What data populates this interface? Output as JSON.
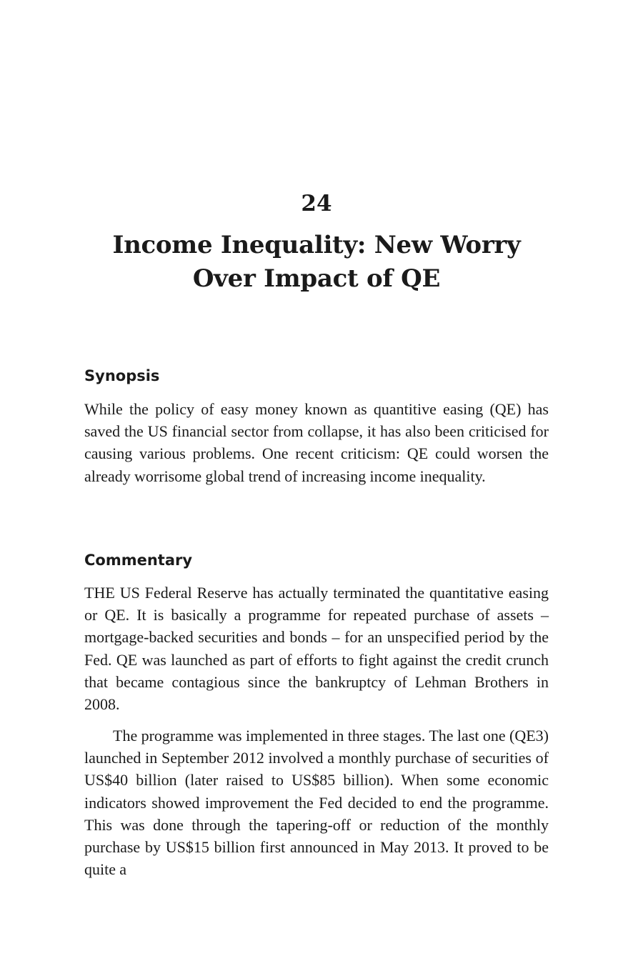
{
  "chapter": {
    "number": "24",
    "title": "Income Inequality: New Worry Over Impact of QE"
  },
  "synopsis": {
    "heading": "Synopsis",
    "text": "While the policy of easy money known as quantitive easing (QE) has saved the US financial sector from collapse, it has also been criticised for causing various problems. One recent criticism: QE could worsen the already worrisome global trend of increasing income inequality."
  },
  "commentary": {
    "heading": "Commentary",
    "paragraphs": [
      "THE US Federal Reserve has actually terminated the quantitative easing or QE. It is basically a programme for repeated purchase of assets – mortgage-backed securities and bonds – for an unspecified period by the Fed. QE was launched as part of efforts to fight against the credit crunch that became contagious since the bankruptcy of Lehman Brothers in 2008.",
      "The programme was implemented in three stages. The last one (QE3) launched in September 2012 involved a monthly purchase of securities of US$40 billion (later raised to US$85 billion). When some economic indicators showed improvement the Fed decided to end the programme. This was done through the tapering-off or reduction of the monthly purchase by US$15 billion first announced in May 2013. It proved to be quite a"
    ]
  }
}
